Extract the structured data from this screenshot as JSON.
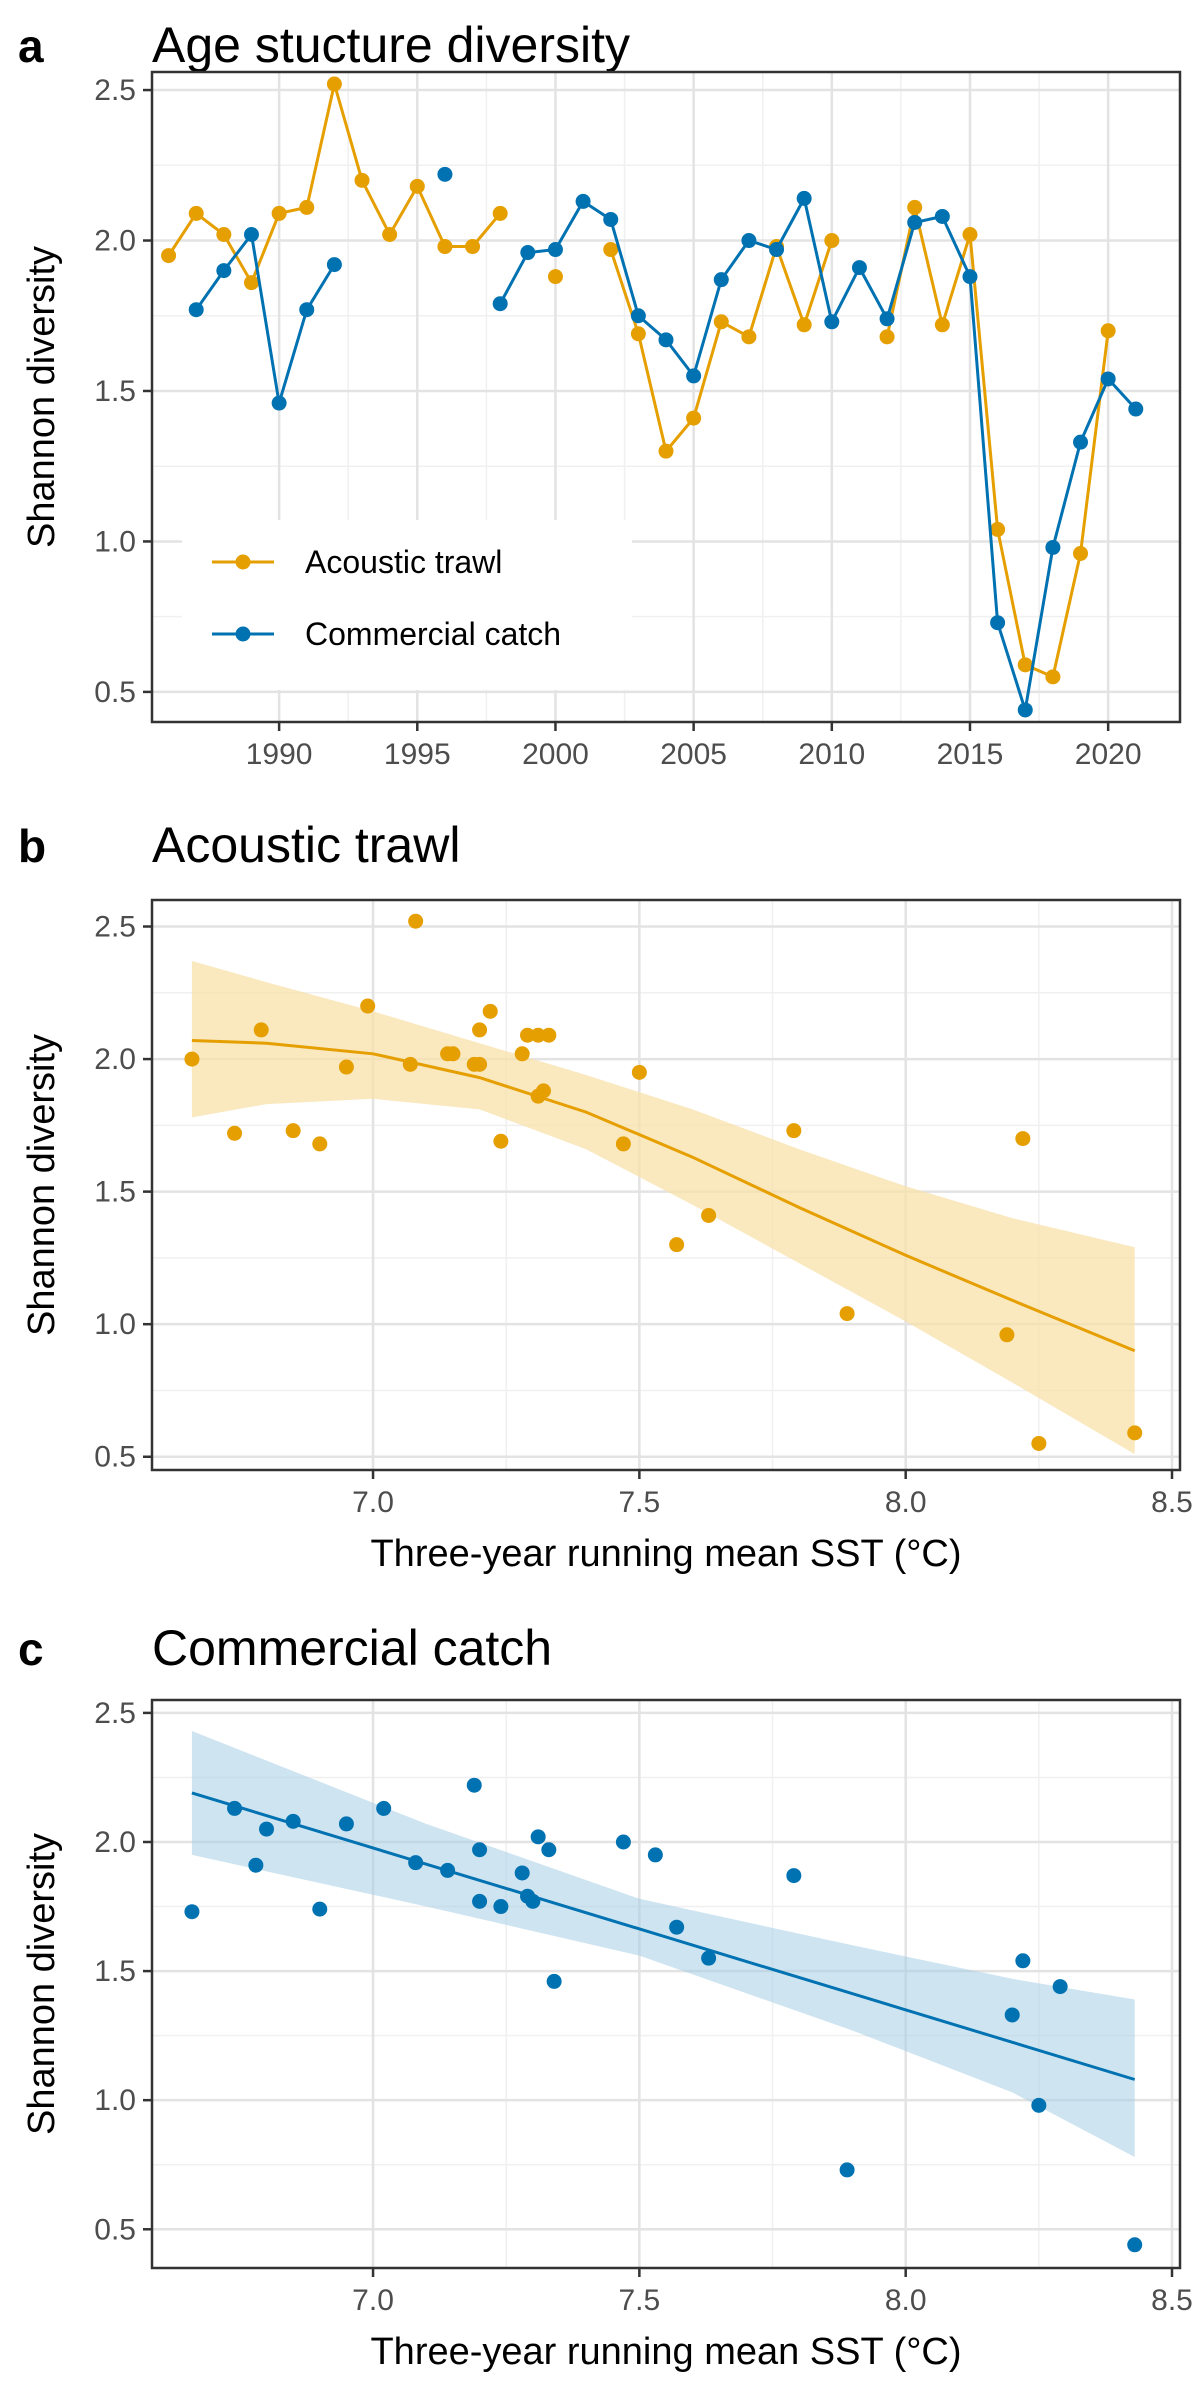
{
  "chart_data": [
    {
      "panel": "a",
      "type": "line",
      "title": "Age stucture diversity",
      "xlabel": "",
      "ylabel": "Shannon diversity",
      "xlim": [
        1985.4,
        2022.6
      ],
      "ylim": [
        0.4,
        2.56
      ],
      "xticks": [
        1990,
        1995,
        2000,
        2005,
        2010,
        2015,
        2020
      ],
      "yticks": [
        0.5,
        1.0,
        1.5,
        2.0,
        2.5
      ],
      "grid": true,
      "legend_position": "bottom-left",
      "series": [
        {
          "name": "Acoustic trawl",
          "color": "#E69F00",
          "points": [
            [
              1986,
              1.95
            ],
            [
              1987,
              2.09
            ],
            [
              1988,
              2.02
            ],
            [
              1989,
              1.86
            ],
            [
              1990,
              2.09
            ],
            [
              1991,
              2.11
            ],
            [
              1992,
              2.52
            ],
            [
              1993,
              2.2
            ],
            [
              1994,
              2.02
            ],
            [
              1995,
              2.18
            ],
            [
              1996,
              1.98
            ],
            [
              1997,
              1.98
            ],
            [
              1998,
              2.09
            ],
            [
              2000,
              1.88
            ],
            [
              2002,
              1.97
            ],
            [
              2003,
              1.69
            ],
            [
              2004,
              1.3
            ],
            [
              2005,
              1.41
            ],
            [
              2006,
              1.73
            ],
            [
              2007,
              1.68
            ],
            [
              2008,
              1.98
            ],
            [
              2009,
              1.72
            ],
            [
              2010,
              2.0
            ],
            [
              2012,
              1.68
            ],
            [
              2013,
              2.11
            ],
            [
              2014,
              1.72
            ],
            [
              2015,
              2.02
            ],
            [
              2016,
              1.04
            ],
            [
              2017,
              0.59
            ],
            [
              2018,
              0.55
            ],
            [
              2019,
              0.96
            ],
            [
              2020,
              1.7
            ]
          ],
          "segments": [
            [
              1986,
              1987,
              1988,
              1989,
              1990,
              1991,
              1992,
              1993,
              1994,
              1995,
              1996,
              1997,
              1998
            ],
            [
              2002,
              2003,
              2004,
              2005,
              2006,
              2007,
              2008,
              2009,
              2010
            ],
            [
              2012,
              2013,
              2014,
              2015,
              2016,
              2017,
              2018,
              2019,
              2020
            ]
          ]
        },
        {
          "name": "Commercial catch",
          "color": "#0072B2",
          "points": [
            [
              1987,
              1.77
            ],
            [
              1988,
              1.9
            ],
            [
              1989,
              2.02
            ],
            [
              1990,
              1.46
            ],
            [
              1991,
              1.77
            ],
            [
              1992,
              1.92
            ],
            [
              1996,
              2.22
            ],
            [
              1998,
              1.79
            ],
            [
              1999,
              1.96
            ],
            [
              2000,
              1.97
            ],
            [
              2001,
              2.13
            ],
            [
              2002,
              2.07
            ],
            [
              2003,
              1.75
            ],
            [
              2004,
              1.67
            ],
            [
              2005,
              1.55
            ],
            [
              2006,
              1.87
            ],
            [
              2007,
              2.0
            ],
            [
              2008,
              1.97
            ],
            [
              2009,
              2.14
            ],
            [
              2010,
              1.73
            ],
            [
              2011,
              1.91
            ],
            [
              2012,
              1.74
            ],
            [
              2013,
              2.06
            ],
            [
              2014,
              2.08
            ],
            [
              2015,
              1.88
            ],
            [
              2016,
              0.73
            ],
            [
              2017,
              0.44
            ],
            [
              2018,
              0.98
            ],
            [
              2019,
              1.33
            ],
            [
              2020,
              1.54
            ],
            [
              2021,
              1.44
            ]
          ],
          "segments": [
            [
              1987,
              1988,
              1989,
              1990,
              1991,
              1992
            ],
            [
              1998,
              1999,
              2000,
              2001,
              2002,
              2003,
              2004,
              2005,
              2006,
              2007,
              2008,
              2009,
              2010,
              2011,
              2012,
              2013,
              2014,
              2015,
              2016,
              2017,
              2018,
              2019,
              2020,
              2021
            ]
          ]
        }
      ]
    },
    {
      "panel": "b",
      "type": "scatter",
      "title": "Acoustic trawl",
      "xlabel": "Three-year running mean SST (°C)",
      "ylabel": "Shannon diversity",
      "xlim": [
        6.585,
        8.515
      ],
      "ylim": [
        0.45,
        2.6
      ],
      "xticks": [
        7.0,
        7.5,
        8.0,
        8.5
      ],
      "xtick_labels": [
        "7.0",
        "7.5",
        "8.0",
        "8.5"
      ],
      "yticks": [
        0.5,
        1.0,
        1.5,
        2.0,
        2.5
      ],
      "grid": true,
      "color": "#E69F00",
      "points": [
        [
          6.66,
          2.0
        ],
        [
          6.74,
          1.72
        ],
        [
          6.79,
          2.11
        ],
        [
          6.85,
          1.73
        ],
        [
          6.9,
          1.68
        ],
        [
          6.95,
          1.97
        ],
        [
          6.99,
          2.2
        ],
        [
          7.07,
          1.98
        ],
        [
          7.08,
          2.52
        ],
        [
          7.14,
          2.02
        ],
        [
          7.15,
          2.02
        ],
        [
          7.19,
          1.98
        ],
        [
          7.2,
          1.98
        ],
        [
          7.2,
          2.11
        ],
        [
          7.22,
          2.18
        ],
        [
          7.24,
          1.69
        ],
        [
          7.28,
          2.02
        ],
        [
          7.29,
          2.09
        ],
        [
          7.31,
          2.09
        ],
        [
          7.31,
          1.86
        ],
        [
          7.32,
          1.88
        ],
        [
          7.33,
          2.09
        ],
        [
          7.47,
          1.68
        ],
        [
          7.5,
          1.95
        ],
        [
          7.57,
          1.3
        ],
        [
          7.63,
          1.41
        ],
        [
          7.79,
          1.73
        ],
        [
          7.89,
          1.04
        ],
        [
          8.19,
          0.96
        ],
        [
          8.22,
          1.7
        ],
        [
          8.25,
          0.55
        ],
        [
          8.43,
          0.59
        ]
      ],
      "fit": [
        [
          6.66,
          2.07
        ],
        [
          6.8,
          2.06
        ],
        [
          7.0,
          2.02
        ],
        [
          7.2,
          1.93
        ],
        [
          7.4,
          1.8
        ],
        [
          7.6,
          1.63
        ],
        [
          7.8,
          1.44
        ],
        [
          8.0,
          1.26
        ],
        [
          8.2,
          1.09
        ],
        [
          8.43,
          0.9
        ]
      ],
      "ci_lower": [
        [
          6.66,
          1.78
        ],
        [
          6.8,
          1.83
        ],
        [
          7.0,
          1.85
        ],
        [
          7.2,
          1.81
        ],
        [
          7.4,
          1.66
        ],
        [
          7.6,
          1.45
        ],
        [
          7.8,
          1.23
        ],
        [
          8.0,
          1.01
        ],
        [
          8.2,
          0.78
        ],
        [
          8.43,
          0.51
        ]
      ],
      "ci_upper": [
        [
          6.66,
          2.37
        ],
        [
          6.8,
          2.29
        ],
        [
          7.0,
          2.18
        ],
        [
          7.2,
          2.06
        ],
        [
          7.4,
          1.94
        ],
        [
          7.6,
          1.81
        ],
        [
          7.8,
          1.66
        ],
        [
          8.0,
          1.52
        ],
        [
          8.2,
          1.4
        ],
        [
          8.43,
          1.29
        ]
      ]
    },
    {
      "panel": "c",
      "type": "scatter",
      "title": "Commercial catch",
      "xlabel": "Three-year running mean SST (°C)",
      "ylabel": "Shannon diversity",
      "xlim": [
        6.585,
        8.515
      ],
      "ylim": [
        0.35,
        2.55
      ],
      "xticks": [
        7.0,
        7.5,
        8.0,
        8.5
      ],
      "xtick_labels": [
        "7.0",
        "7.5",
        "8.0",
        "8.5"
      ],
      "yticks": [
        0.5,
        1.0,
        1.5,
        2.0,
        2.5
      ],
      "grid": true,
      "color": "#0072B2",
      "points": [
        [
          6.66,
          1.73
        ],
        [
          6.74,
          2.13
        ],
        [
          6.78,
          1.91
        ],
        [
          6.8,
          2.05
        ],
        [
          6.85,
          2.08
        ],
        [
          6.9,
          1.74
        ],
        [
          6.95,
          2.07
        ],
        [
          7.02,
          2.13
        ],
        [
          7.08,
          1.92
        ],
        [
          7.14,
          1.89
        ],
        [
          7.19,
          2.22
        ],
        [
          7.2,
          1.97
        ],
        [
          7.2,
          1.77
        ],
        [
          7.24,
          1.75
        ],
        [
          7.28,
          1.88
        ],
        [
          7.29,
          1.79
        ],
        [
          7.3,
          1.77
        ],
        [
          7.31,
          2.02
        ],
        [
          7.33,
          1.97
        ],
        [
          7.34,
          1.46
        ],
        [
          7.47,
          2.0
        ],
        [
          7.53,
          1.95
        ],
        [
          7.57,
          1.67
        ],
        [
          7.63,
          1.55
        ],
        [
          7.79,
          1.87
        ],
        [
          7.89,
          0.73
        ],
        [
          8.2,
          1.33
        ],
        [
          8.22,
          1.54
        ],
        [
          8.25,
          0.98
        ],
        [
          8.29,
          1.44
        ],
        [
          8.43,
          0.44
        ]
      ],
      "fit": [
        [
          6.66,
          2.19
        ],
        [
          8.43,
          1.08
        ]
      ],
      "ci_lower": [
        [
          6.66,
          1.95
        ],
        [
          7.1,
          1.75
        ],
        [
          7.5,
          1.56
        ],
        [
          7.9,
          1.27
        ],
        [
          8.2,
          1.03
        ],
        [
          8.43,
          0.78
        ]
      ],
      "ci_upper": [
        [
          6.66,
          2.43
        ],
        [
          7.1,
          2.07
        ],
        [
          7.5,
          1.78
        ],
        [
          7.9,
          1.6
        ],
        [
          8.2,
          1.47
        ],
        [
          8.43,
          1.39
        ]
      ]
    }
  ],
  "colors": {
    "acoustic": "#E69F00",
    "commercial": "#0072B2",
    "acoustic_band": "#F8E0A8",
    "commercial_band": "#A6CDE5"
  }
}
